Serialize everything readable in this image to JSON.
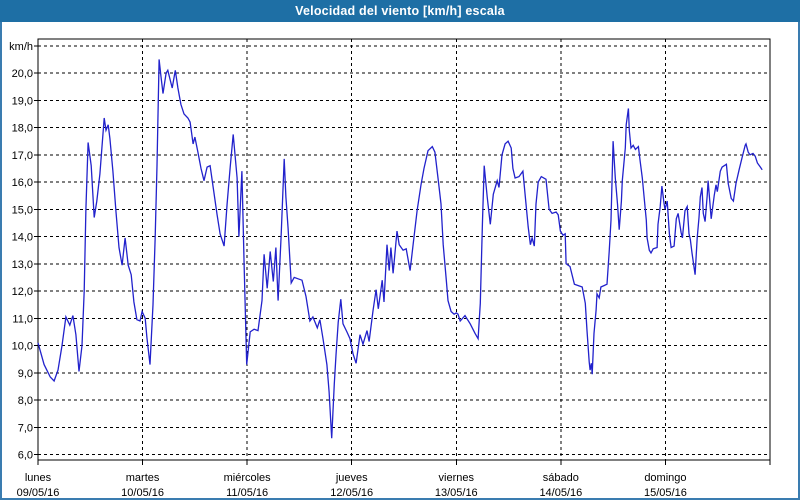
{
  "window": {
    "title": "Velocidad del viento [km/h] escala",
    "titlebar_color": "#1e6fa5",
    "border_color": "#3a7cb0"
  },
  "chart_data": {
    "type": "line",
    "title": "Velocidad del viento [km/h] escala",
    "unit_label": "km/h",
    "series_color": "#2222cc",
    "grid": true,
    "legend": false,
    "ylim": [
      5.8,
      21.25
    ],
    "y_tick_min": 6,
    "y_tick_max": 21,
    "y_tick_labels": [
      "6,0",
      "7,0",
      "8,0",
      "9,0",
      "10,0",
      "11,0",
      "12,0",
      "13,0",
      "14,0",
      "15,0",
      "16,0",
      "17,0",
      "18,0",
      "19,0",
      "20,0"
    ],
    "hours_total": 168,
    "x_days": [
      {
        "name": "lunes",
        "date": "09/05/16"
      },
      {
        "name": "martes",
        "date": "10/05/16"
      },
      {
        "name": "miércoles",
        "date": "11/05/16"
      },
      {
        "name": "jueves",
        "date": "12/05/16"
      },
      {
        "name": "viernes",
        "date": "13/05/16"
      },
      {
        "name": "sábado",
        "date": "14/05/16"
      },
      {
        "name": "domingo",
        "date": "15/05/16"
      }
    ],
    "points": [
      [
        0,
        10.1
      ],
      [
        1.4,
        9.3
      ],
      [
        2.8,
        8.85
      ],
      [
        3.7,
        8.7
      ],
      [
        4.6,
        9.1
      ],
      [
        5.5,
        10.0
      ],
      [
        6.4,
        11.05
      ],
      [
        7.3,
        10.75
      ],
      [
        8,
        11.1
      ],
      [
        8.7,
        10.4
      ],
      [
        9.4,
        9.05
      ],
      [
        10.1,
        10.0
      ],
      [
        10.6,
        12.0
      ],
      [
        11,
        15.0
      ],
      [
        11.5,
        17.45
      ],
      [
        12.2,
        16.6
      ],
      [
        12.9,
        14.7
      ],
      [
        13.5,
        15.3
      ],
      [
        14.2,
        16.3
      ],
      [
        14.7,
        17.3
      ],
      [
        15.2,
        18.35
      ],
      [
        15.6,
        17.9
      ],
      [
        16.1,
        18.1
      ],
      [
        16.5,
        17.6
      ],
      [
        17.2,
        16.4
      ],
      [
        17.9,
        14.9
      ],
      [
        18.6,
        13.6
      ],
      [
        19.3,
        12.95
      ],
      [
        20,
        13.95
      ],
      [
        20.7,
        12.95
      ],
      [
        21.4,
        12.6
      ],
      [
        22,
        11.6
      ],
      [
        22.7,
        10.95
      ],
      [
        23.4,
        10.9
      ],
      [
        23.9,
        11.25
      ],
      [
        24.6,
        11.0
      ],
      [
        25,
        10.3
      ],
      [
        25.7,
        9.3
      ],
      [
        26.4,
        11.5
      ],
      [
        26.9,
        14.0
      ],
      [
        27.3,
        16.6
      ],
      [
        27.8,
        20.5
      ],
      [
        28.2,
        19.9
      ],
      [
        28.7,
        19.25
      ],
      [
        29.4,
        20.0
      ],
      [
        29.8,
        20.1
      ],
      [
        30.8,
        19.45
      ],
      [
        31.5,
        20.1
      ],
      [
        32.1,
        19.45
      ],
      [
        32.8,
        18.85
      ],
      [
        33.5,
        18.5
      ],
      [
        34.4,
        18.35
      ],
      [
        34.9,
        18.2
      ],
      [
        35.6,
        17.4
      ],
      [
        36,
        17.65
      ],
      [
        36.7,
        17.1
      ],
      [
        37.4,
        16.5
      ],
      [
        38.1,
        16.05
      ],
      [
        38.8,
        16.55
      ],
      [
        39.5,
        16.6
      ],
      [
        40.2,
        15.8
      ],
      [
        41.1,
        14.8
      ],
      [
        41.8,
        14.1
      ],
      [
        42.7,
        13.65
      ],
      [
        43.4,
        15.2
      ],
      [
        44.1,
        16.55
      ],
      [
        44.8,
        17.75
      ],
      [
        45.7,
        16.15
      ],
      [
        46.1,
        14.0
      ],
      [
        46.8,
        16.4
      ],
      [
        47.3,
        13.0
      ],
      [
        47.9,
        9.3
      ],
      [
        48.7,
        10.5
      ],
      [
        49.6,
        10.6
      ],
      [
        50.5,
        10.55
      ],
      [
        51.4,
        11.65
      ],
      [
        51.9,
        13.35
      ],
      [
        52.6,
        12.1
      ],
      [
        53.3,
        13.45
      ],
      [
        54,
        12.35
      ],
      [
        54.6,
        13.6
      ],
      [
        55.1,
        11.65
      ],
      [
        55.8,
        14.0
      ],
      [
        56.5,
        16.85
      ],
      [
        56.9,
        15.45
      ],
      [
        57.4,
        14.3
      ],
      [
        58.1,
        12.3
      ],
      [
        58.8,
        12.5
      ],
      [
        59.7,
        12.45
      ],
      [
        60.6,
        12.4
      ],
      [
        61.5,
        11.8
      ],
      [
        62.4,
        10.9
      ],
      [
        63.1,
        11.05
      ],
      [
        64.1,
        10.65
      ],
      [
        64.7,
        10.95
      ],
      [
        65.4,
        10.25
      ],
      [
        66.3,
        9.3
      ],
      [
        66.8,
        8.3
      ],
      [
        67.4,
        6.6
      ],
      [
        68,
        8.6
      ],
      [
        68.4,
        9.65
      ],
      [
        68.9,
        10.85
      ],
      [
        69.5,
        11.7
      ],
      [
        70,
        10.8
      ],
      [
        70.9,
        10.5
      ],
      [
        71.6,
        10.25
      ],
      [
        72.3,
        9.7
      ],
      [
        73,
        9.35
      ],
      [
        73.9,
        10.4
      ],
      [
        74.6,
        10.05
      ],
      [
        75.5,
        10.55
      ],
      [
        76,
        10.15
      ],
      [
        76.9,
        11.3
      ],
      [
        77.6,
        12.05
      ],
      [
        78.1,
        11.35
      ],
      [
        79,
        12.4
      ],
      [
        79.4,
        11.6
      ],
      [
        80.1,
        13.7
      ],
      [
        80.6,
        12.75
      ],
      [
        81,
        13.6
      ],
      [
        81.5,
        12.65
      ],
      [
        82.4,
        14.2
      ],
      [
        82.9,
        13.7
      ],
      [
        83.8,
        13.5
      ],
      [
        84.5,
        13.55
      ],
      [
        85.4,
        12.75
      ],
      [
        86.1,
        13.7
      ],
      [
        87,
        14.95
      ],
      [
        87.9,
        15.9
      ],
      [
        88.6,
        16.5
      ],
      [
        89.5,
        17.15
      ],
      [
        90.5,
        17.3
      ],
      [
        91.1,
        17.1
      ],
      [
        91.8,
        16.15
      ],
      [
        92.5,
        15.2
      ],
      [
        93,
        13.7
      ],
      [
        93.7,
        12.4
      ],
      [
        94.1,
        11.65
      ],
      [
        94.8,
        11.25
      ],
      [
        95.5,
        11.15
      ],
      [
        96,
        11.2
      ],
      [
        96.4,
        11.15
      ],
      [
        96.9,
        10.9
      ],
      [
        98,
        11.1
      ],
      [
        99.2,
        10.8
      ],
      [
        100.3,
        10.45
      ],
      [
        101,
        10.25
      ],
      [
        101.5,
        11.55
      ],
      [
        102,
        14.45
      ],
      [
        102.4,
        16.6
      ],
      [
        103.1,
        15.45
      ],
      [
        103.8,
        14.45
      ],
      [
        104.5,
        15.55
      ],
      [
        105.4,
        16.05
      ],
      [
        105.8,
        15.8
      ],
      [
        106.5,
        17.0
      ],
      [
        107.2,
        17.4
      ],
      [
        107.9,
        17.5
      ],
      [
        108.6,
        17.25
      ],
      [
        109,
        16.5
      ],
      [
        109.5,
        16.15
      ],
      [
        110.4,
        16.2
      ],
      [
        111.3,
        16.4
      ],
      [
        112,
        15.2
      ],
      [
        112.5,
        14.35
      ],
      [
        113,
        13.7
      ],
      [
        113.4,
        13.95
      ],
      [
        113.9,
        13.65
      ],
      [
        114.3,
        15.2
      ],
      [
        114.8,
        16.0
      ],
      [
        115.5,
        16.2
      ],
      [
        116.6,
        16.1
      ],
      [
        117.3,
        15.0
      ],
      [
        118,
        14.85
      ],
      [
        118.9,
        14.9
      ],
      [
        119.4,
        14.8
      ],
      [
        119.9,
        14.2
      ],
      [
        120.5,
        14.05
      ],
      [
        121,
        14.1
      ],
      [
        121.2,
        13.0
      ],
      [
        122.1,
        12.9
      ],
      [
        123.1,
        12.25
      ],
      [
        124,
        12.2
      ],
      [
        124.9,
        12.15
      ],
      [
        125.6,
        11.55
      ],
      [
        126,
        10.55
      ],
      [
        126.5,
        9.4
      ],
      [
        126.7,
        9.1
      ],
      [
        127,
        9.35
      ],
      [
        127.2,
        8.95
      ],
      [
        127.6,
        10.45
      ],
      [
        128.1,
        11.3
      ],
      [
        128.3,
        11.9
      ],
      [
        128.8,
        11.75
      ],
      [
        129.2,
        12.15
      ],
      [
        129.9,
        12.2
      ],
      [
        130.6,
        12.25
      ],
      [
        131.1,
        13.45
      ],
      [
        131.5,
        14.6
      ],
      [
        132,
        17.5
      ],
      [
        132.5,
        16.15
      ],
      [
        133,
        15.2
      ],
      [
        133.4,
        14.25
      ],
      [
        133.9,
        15.3
      ],
      [
        134.1,
        16.05
      ],
      [
        134.8,
        17.25
      ],
      [
        135,
        18.1
      ],
      [
        135.5,
        18.7
      ],
      [
        135.7,
        17.9
      ],
      [
        136.1,
        17.25
      ],
      [
        136.6,
        17.35
      ],
      [
        137.1,
        17.2
      ],
      [
        137.8,
        17.3
      ],
      [
        138.2,
        16.75
      ],
      [
        138.7,
        16.15
      ],
      [
        139.1,
        15.45
      ],
      [
        139.6,
        14.6
      ],
      [
        139.8,
        13.95
      ],
      [
        140.3,
        13.5
      ],
      [
        140.7,
        13.4
      ],
      [
        141.2,
        13.55
      ],
      [
        142.1,
        13.6
      ],
      [
        142.3,
        14.45
      ],
      [
        142.8,
        15.1
      ],
      [
        143.2,
        15.85
      ],
      [
        143.7,
        15.2
      ],
      [
        143.9,
        15.0
      ],
      [
        144.4,
        15.3
      ],
      [
        144.9,
        14.1
      ],
      [
        145.3,
        13.6
      ],
      [
        146,
        13.65
      ],
      [
        146.5,
        14.65
      ],
      [
        146.9,
        14.85
      ],
      [
        147.6,
        14.15
      ],
      [
        147.9,
        13.95
      ],
      [
        148.5,
        14.95
      ],
      [
        149,
        15.1
      ],
      [
        149.4,
        14.1
      ],
      [
        149.7,
        13.9
      ],
      [
        150.1,
        13.4
      ],
      [
        150.8,
        12.6
      ],
      [
        151.3,
        13.95
      ],
      [
        151.7,
        14.7
      ],
      [
        152,
        15.45
      ],
      [
        152.4,
        15.8
      ],
      [
        152.7,
        14.85
      ],
      [
        153.1,
        14.55
      ],
      [
        153.6,
        15.55
      ],
      [
        153.8,
        16.05
      ],
      [
        154.5,
        14.65
      ],
      [
        155.2,
        15.5
      ],
      [
        155.6,
        15.9
      ],
      [
        155.9,
        15.65
      ],
      [
        156.6,
        16.4
      ],
      [
        157,
        16.55
      ],
      [
        158,
        16.65
      ],
      [
        158.4,
        15.95
      ],
      [
        159.1,
        15.4
      ],
      [
        159.6,
        15.3
      ],
      [
        160.2,
        15.95
      ],
      [
        160.9,
        16.45
      ],
      [
        161.6,
        16.9
      ],
      [
        162.3,
        17.35
      ],
      [
        162.5,
        17.4
      ],
      [
        163,
        17.1
      ],
      [
        163.4,
        17.0
      ],
      [
        164.1,
        17.05
      ],
      [
        164.6,
        16.95
      ],
      [
        165.1,
        16.7
      ],
      [
        165.8,
        16.55
      ],
      [
        166.2,
        16.45
      ]
    ]
  }
}
